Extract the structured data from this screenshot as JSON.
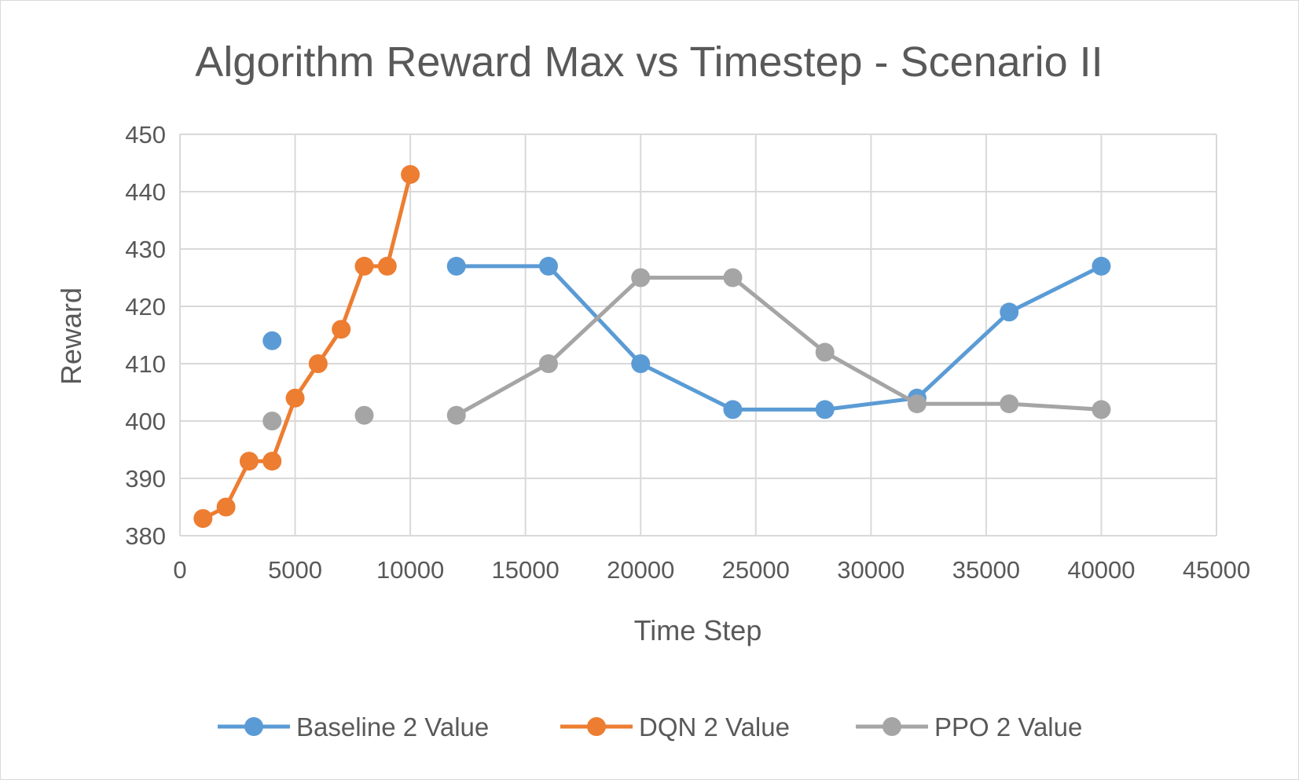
{
  "chart_data": {
    "type": "line",
    "title": "Algorithm Reward Max vs Timestep - Scenario II",
    "xlabel": "Time Step",
    "ylabel": "Reward",
    "xlim": [
      0,
      45000
    ],
    "ylim": [
      380,
      450
    ],
    "x_ticks": [
      0,
      5000,
      10000,
      15000,
      20000,
      25000,
      30000,
      35000,
      40000,
      45000
    ],
    "y_ticks": [
      380,
      390,
      400,
      410,
      420,
      430,
      440,
      450
    ],
    "grid": true,
    "legend_position": "bottom",
    "series": [
      {
        "name": "Baseline 2 Value",
        "color": "#5b9bd5",
        "x": [
          4000,
          null,
          12000,
          16000,
          20000,
          24000,
          28000,
          32000,
          36000,
          40000
        ],
        "y": [
          414,
          null,
          427,
          427,
          410,
          402,
          402,
          404,
          419,
          427
        ]
      },
      {
        "name": "DQN 2 Value",
        "color": "#ed7d31",
        "x": [
          1000,
          2000,
          3000,
          4000,
          5000,
          6000,
          7000,
          8000,
          9000,
          10000
        ],
        "y": [
          383,
          385,
          393,
          393,
          404,
          410,
          416,
          427,
          427,
          443
        ]
      },
      {
        "name": "PPO 2 Value",
        "color": "#a5a5a5",
        "x": [
          4000,
          null,
          8000,
          null,
          12000,
          16000,
          20000,
          24000,
          28000,
          32000,
          36000,
          40000
        ],
        "y": [
          400,
          null,
          401,
          null,
          401,
          410,
          425,
          425,
          412,
          403,
          403,
          402
        ]
      }
    ]
  }
}
